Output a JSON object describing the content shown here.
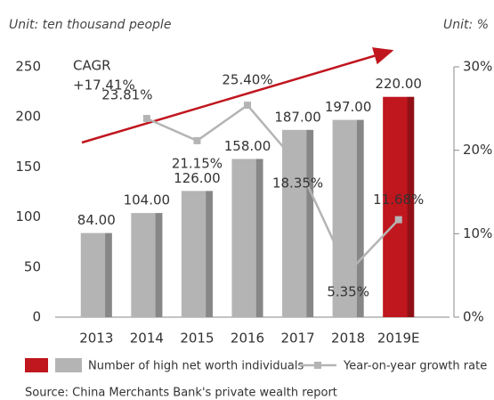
{
  "chart_data": {
    "type": "bar_line",
    "unit_left": "Unit: ten thousand people",
    "unit_right": "Unit: %",
    "annotation": [
      "CAGR",
      "+17.41%"
    ],
    "source": "Source: China Merchants Bank's private wealth report",
    "categories": [
      "2013",
      "2014",
      "2015",
      "2016",
      "2017",
      "2018",
      "2019E"
    ],
    "series": [
      {
        "name": "Number of high net worth individuals",
        "color": "#b4b4b4",
        "highlight_color": "#c0161e",
        "colors": [
          "#b4b4b4",
          "#b4b4b4",
          "#b4b4b4",
          "#b4b4b4",
          "#b4b4b4",
          "#b4b4b4",
          "#c0161e"
        ],
        "values": [
          84,
          104,
          126,
          158,
          187,
          197,
          220
        ],
        "value_labels": [
          "84.00",
          "104.00",
          "126.00",
          "158.00",
          "187.00",
          "197.00",
          "220.00"
        ]
      },
      {
        "name": "Year-on-year growth rate",
        "color": "#b4b4b4",
        "axis": "y2",
        "values": [
          null,
          23.81,
          21.15,
          25.4,
          18.35,
          5.35,
          11.68
        ],
        "value_labels": [
          null,
          "23.81%",
          "21.15%",
          "25.40%",
          "18.35%",
          "5.35%",
          "11.68%"
        ]
      }
    ],
    "ylim": [
      0,
      250
    ],
    "yticks": [
      0,
      50,
      100,
      150,
      200,
      250
    ],
    "y2lim": [
      0,
      30
    ],
    "y2ticks": [
      {
        "value": 0,
        "label": "0%"
      },
      {
        "value": 10,
        "label": "10%"
      },
      {
        "value": 20,
        "label": "20%"
      },
      {
        "value": 30,
        "label": "30%"
      }
    ]
  }
}
